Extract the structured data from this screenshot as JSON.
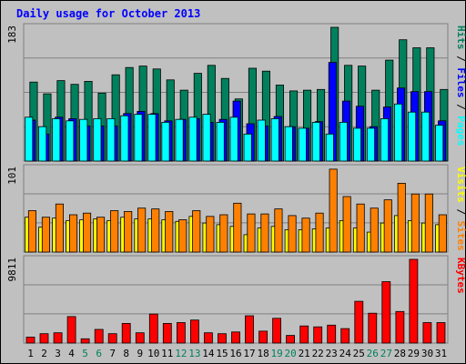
{
  "title": "Daily usage for October 2013",
  "colors": {
    "hits": "#00805c",
    "files": "#0000ff",
    "pages": "#00ffff",
    "visits": "#ffff00",
    "sites": "#ff8000",
    "kbytes": "#ff0000",
    "weekend_label": "#00805c",
    "weekday_label": "#000000",
    "title": "#0000ff",
    "panel_bg": "#c0c0c0"
  },
  "chart_data": {
    "type": "bar",
    "title": "Daily usage for October 2013",
    "categories": [
      "1",
      "2",
      "3",
      "4",
      "5",
      "6",
      "7",
      "8",
      "9",
      "10",
      "11",
      "12",
      "13",
      "14",
      "15",
      "16",
      "17",
      "18",
      "19",
      "20",
      "21",
      "22",
      "23",
      "24",
      "25",
      "26",
      "27",
      "28",
      "29",
      "30",
      "31"
    ],
    "weekend_days": [
      "5",
      "6",
      "12",
      "13",
      "19",
      "20",
      "26",
      "27"
    ],
    "panels": [
      {
        "name": "hits-files-pages",
        "ymax_label": "183",
        "ylim": [
          0,
          183
        ],
        "series": [
          {
            "name": "Hits",
            "color": "#00805c",
            "values": [
              108,
              92,
              110,
              105,
              109,
              93,
              118,
              128,
              130,
              126,
              111,
              97,
              120,
              131,
              113,
              85,
              127,
              123,
              104,
              96,
              97,
              98,
              183,
              131,
              130,
              97,
              138,
              166,
              155,
              155,
              98
            ]
          },
          {
            "name": "Files",
            "color": "#0000ff",
            "values": [
              56,
              37,
              60,
              58,
              48,
              48,
              48,
              65,
              68,
              65,
              55,
              57,
              58,
              53,
              57,
              82,
              51,
              48,
              61,
              47,
              45,
              54,
              135,
              82,
              75,
              47,
              74,
              100,
              95,
              95,
              55
            ]
          },
          {
            "name": "Pages",
            "color": "#00ffff",
            "values": [
              60,
              47,
              58,
              55,
              57,
              58,
              58,
              62,
              64,
              64,
              53,
              57,
              60,
              64,
              53,
              60,
              37,
              56,
              58,
              47,
              45,
              53,
              37,
              53,
              45,
              45,
              58,
              78,
              67,
              67,
              49
            ]
          }
        ],
        "legend": [
          "Pages",
          "Files",
          "Hits"
        ]
      },
      {
        "name": "visits-sites",
        "ymax_label": "101",
        "ylim": [
          0,
          101
        ],
        "series": [
          {
            "name": "Visits",
            "color": "#ffff00",
            "values": [
              42,
              30,
              41,
              38,
              39,
              40,
              38,
              42,
              40,
              40,
              39,
              37,
              43,
              35,
              33,
              31,
              21,
              29,
              31,
              27,
              27,
              28,
              29,
              38,
              29,
              24,
              35,
              44,
              38,
              35,
              33
            ]
          },
          {
            "name": "Sites",
            "color": "#ff8000",
            "values": [
              50,
              42,
              58,
              45,
              47,
              42,
              50,
              49,
              53,
              52,
              49,
              39,
              50,
              43,
              45,
              59,
              46,
              46,
              52,
              44,
              41,
              47,
              100,
              67,
              58,
              53,
              63,
              83,
              70,
              70,
              45
            ]
          }
        ],
        "legend": [
          "Sites",
          "Visits"
        ]
      },
      {
        "name": "kbytes",
        "ymax_label": "9811",
        "ylim": [
          0,
          9811
        ],
        "series": [
          {
            "name": "KBytes",
            "color": "#ff0000",
            "values": [
              700,
              1100,
              1200,
              3100,
              500,
              1600,
              1100,
              2300,
              1200,
              3400,
              2300,
              2400,
              2700,
              1200,
              1100,
              1300,
              3200,
              1400,
              2900,
              900,
              2000,
              1900,
              2100,
              1700,
              4900,
              3500,
              7200,
              3700,
              9811,
              2400,
              2400
            ]
          }
        ],
        "legend": [
          "KBytes"
        ]
      }
    ]
  }
}
